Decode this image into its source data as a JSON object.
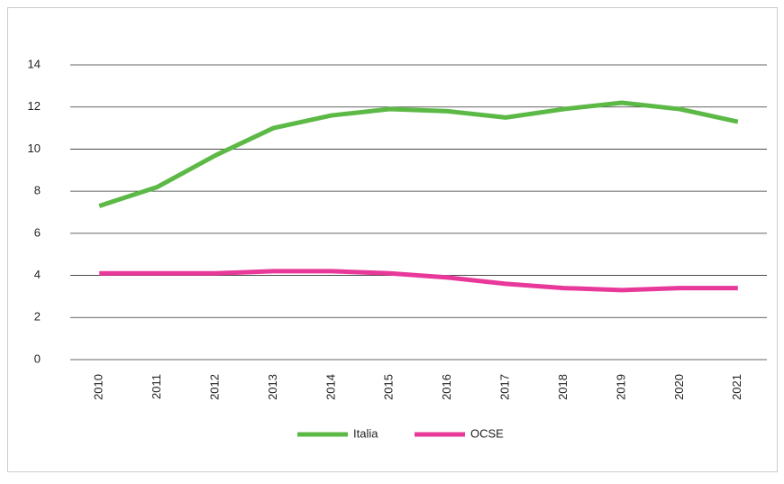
{
  "chart_data": {
    "type": "line",
    "categories": [
      "2010",
      "2011",
      "2012",
      "2013",
      "2014",
      "2015",
      "2016",
      "2017",
      "2018",
      "2019",
      "2020",
      "2021"
    ],
    "series": [
      {
        "name": "Italia",
        "color": "#5cb946",
        "values": [
          7.3,
          8.2,
          9.7,
          11.0,
          11.6,
          11.9,
          11.8,
          11.5,
          11.9,
          12.2,
          11.9,
          11.3
        ]
      },
      {
        "name": "OCSE",
        "color": "#e8399a",
        "values": [
          4.1,
          4.1,
          4.1,
          4.2,
          4.2,
          4.1,
          3.9,
          3.6,
          3.4,
          3.3,
          3.4,
          3.4
        ]
      }
    ],
    "ylim": [
      0,
      14
    ],
    "yticks": [
      0,
      2,
      4,
      6,
      8,
      10,
      12,
      14
    ],
    "grid": true,
    "legend": "bottom"
  }
}
